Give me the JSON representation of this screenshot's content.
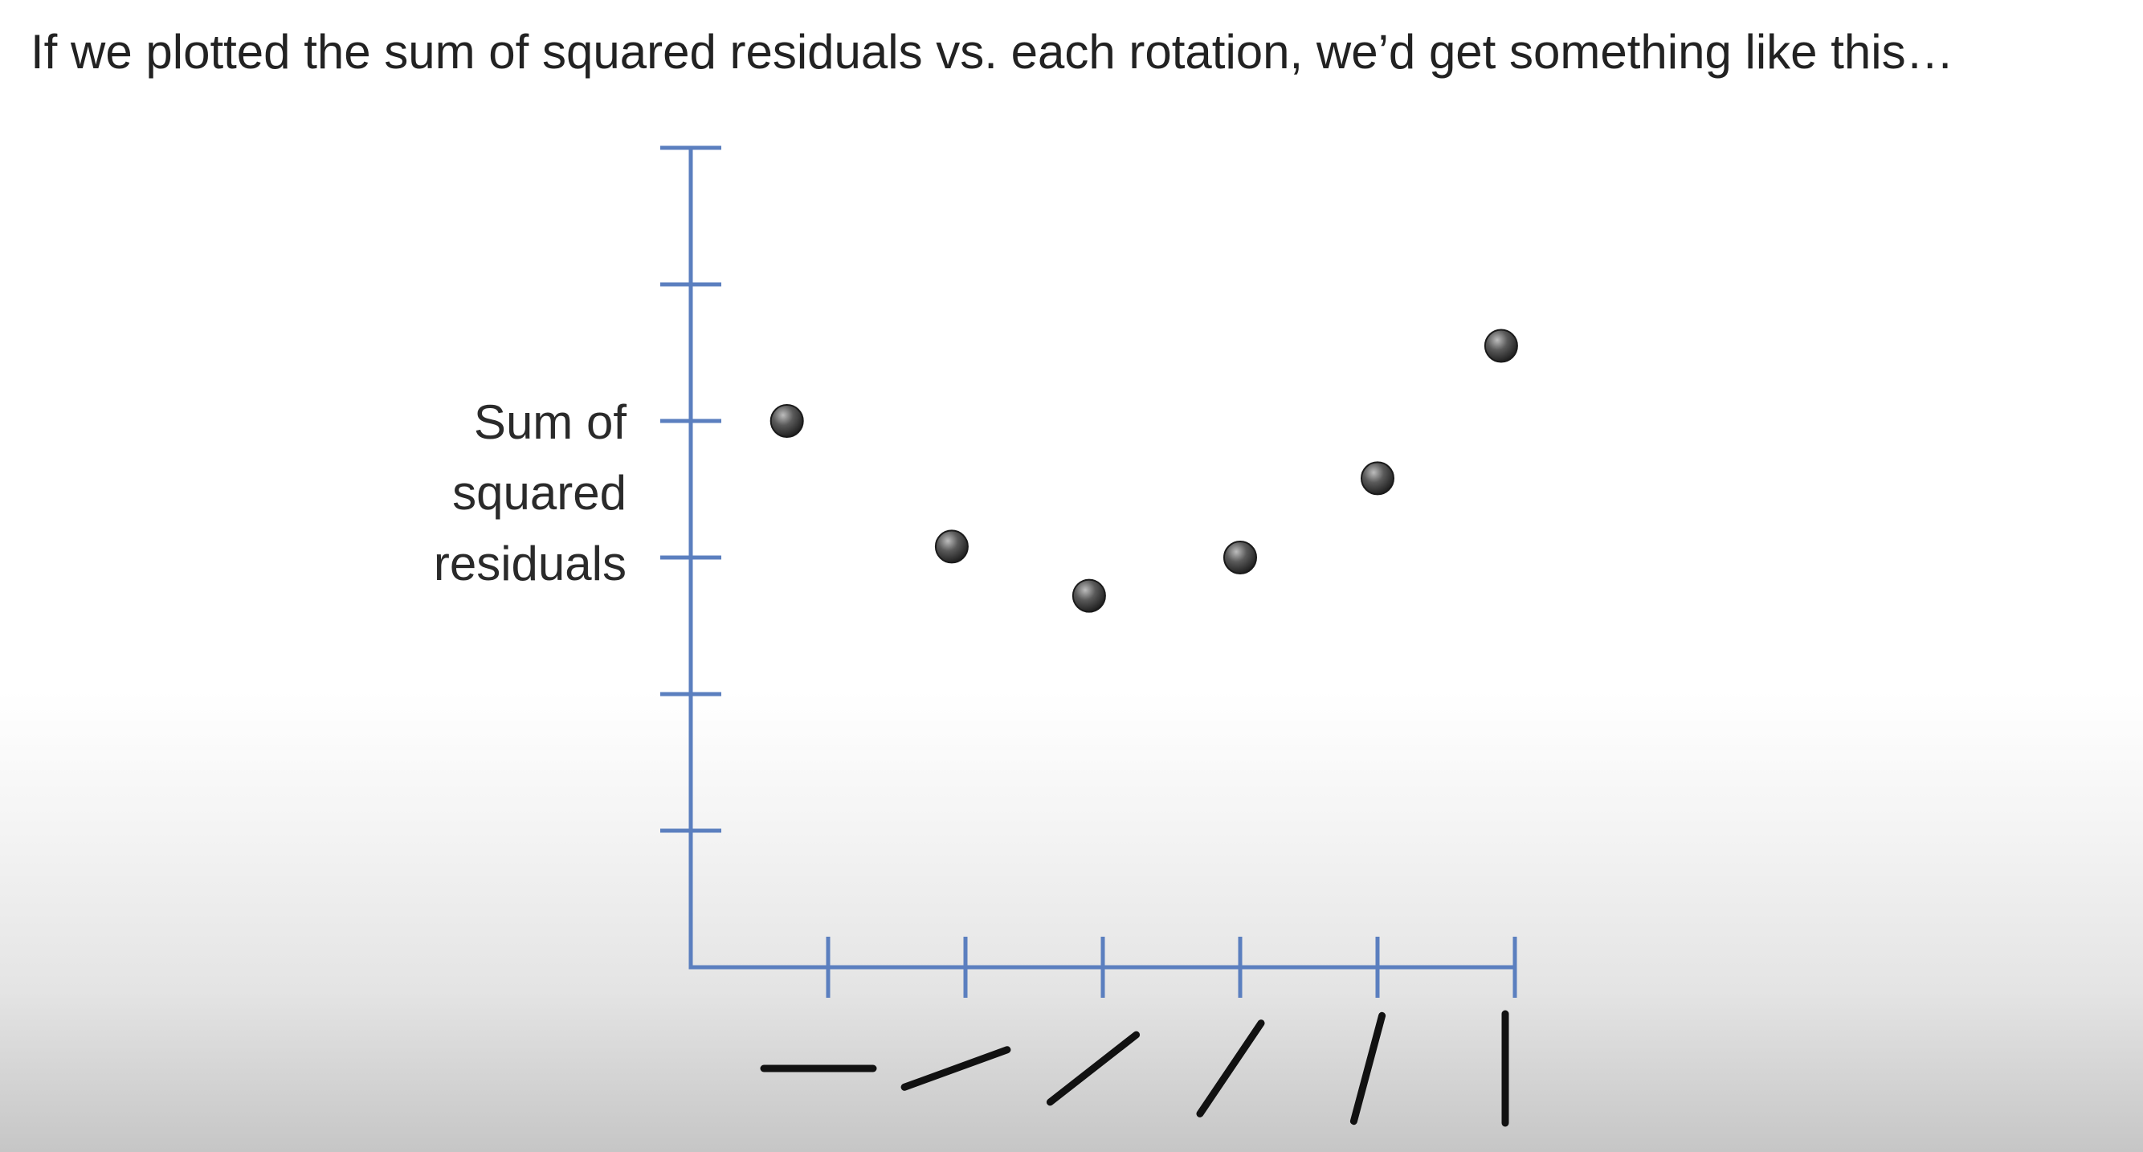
{
  "caption": "If we plotted the sum of squared residuals vs. each rotation, we’d get something like this…",
  "colors": {
    "axis": "#5b7fbf",
    "point": "#3a3a3a",
    "line_icon": "#111111"
  },
  "chart_data": {
    "type": "scatter",
    "title": "",
    "xlabel": "",
    "ylabel_lines": [
      "Sum of",
      "squared",
      "residuals"
    ],
    "x_categories": [
      "rotation 1",
      "rotation 2",
      "rotation 3",
      "rotation 4",
      "rotation 5",
      "rotation 6"
    ],
    "x_icon_angles_deg": [
      0,
      20,
      38,
      56,
      75,
      90
    ],
    "ylim": [
      0,
      6
    ],
    "y_ticks": 6,
    "grid": false,
    "legend": "none",
    "points": [
      {
        "x": 0.7,
        "y": 4.0
      },
      {
        "x": 1.9,
        "y": 3.08
      },
      {
        "x": 2.9,
        "y": 2.72
      },
      {
        "x": 4.0,
        "y": 3.0
      },
      {
        "x": 5.0,
        "y": 3.58
      },
      {
        "x": 5.9,
        "y": 4.55
      }
    ]
  }
}
